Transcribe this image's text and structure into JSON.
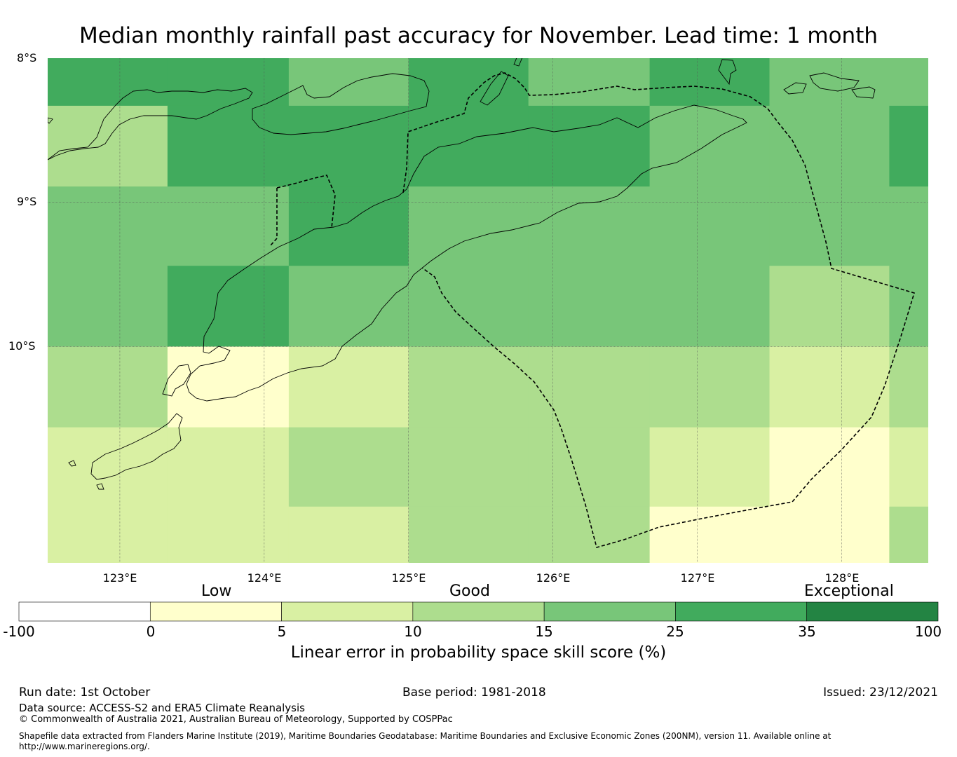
{
  "title": "Median monthly rainfall past accuracy for November. Lead time: 1 month",
  "map": {
    "lat_labels": [
      "8°S",
      "9°S",
      "10°S"
    ],
    "lon_labels": [
      "123°E",
      "124°E",
      "125°E",
      "126°E",
      "127°E",
      "128°E"
    ],
    "extent": {
      "lon_min": 122.5,
      "lon_max": 128.6,
      "lat_max": -8.0,
      "lat_min": -11.5
    }
  },
  "grid": {
    "lon_edges": [
      122.5,
      123.33,
      124.17,
      125.0,
      125.83,
      126.67,
      127.5,
      128.33,
      128.6
    ],
    "lat_edges": [
      -8.0,
      -8.33,
      -8.89,
      -9.44,
      -10.0,
      -10.56,
      -11.11,
      -11.5
    ],
    "colors": [
      "#ffffff",
      "#ffffcc",
      "#d9f0a3",
      "#addd8e",
      "#78c679",
      "#41ab5d",
      "#238443"
    ],
    "class_index": [
      [
        5,
        5,
        4,
        5,
        4,
        5,
        4,
        4
      ],
      [
        3,
        5,
        5,
        5,
        5,
        4,
        4,
        5
      ],
      [
        4,
        4,
        5,
        4,
        4,
        4,
        4,
        4
      ],
      [
        4,
        5,
        4,
        4,
        4,
        4,
        3,
        4
      ],
      [
        3,
        1,
        2,
        3,
        3,
        3,
        2,
        3
      ],
      [
        2,
        2,
        3,
        3,
        3,
        2,
        1,
        2
      ],
      [
        2,
        2,
        2,
        3,
        3,
        1,
        1,
        3
      ]
    ]
  },
  "legend": {
    "categories": [
      "Low",
      "Good",
      "Exceptional"
    ],
    "ticks": [
      "-100",
      "0",
      "5",
      "10",
      "15",
      "25",
      "35",
      "100"
    ],
    "colors": [
      "#ffffff",
      "#ffffcc",
      "#d9f0a3",
      "#addd8e",
      "#78c679",
      "#41ab5d",
      "#238443"
    ],
    "label": "Linear error in probability space skill score (%)"
  },
  "footer": {
    "run_date": "Run date: 1st October",
    "base_period": "Base period: 1981-2018",
    "issued": "Issued: 23/12/2021",
    "data_source": "Data source: ACCESS-S2 and ERA5 Climate Reanalysis",
    "copyright": "© Commonwealth of Australia 2021, Australian Bureau of Meteorology, Supported by COSPPac",
    "shapefile_1": "Shapefile data extracted from Flanders Marine Institute (2019), Maritime Boundaries Geodatabase: Maritime Boundaries and Exclusive Economic Zones (200NM), version 11. Available online at",
    "shapefile_2": "http://www.marineregions.org/."
  }
}
